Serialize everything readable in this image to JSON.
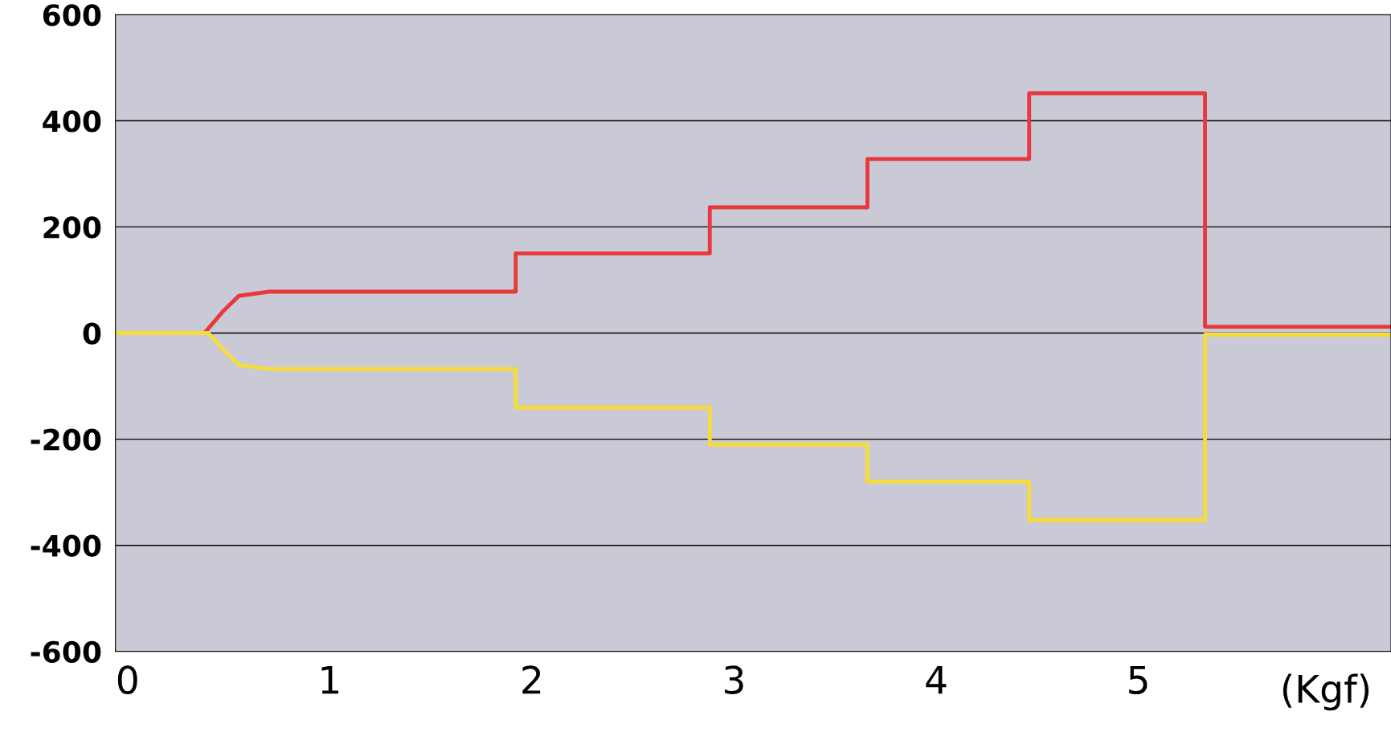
{
  "chart_data": {
    "type": "line",
    "xlabel": "(Kgf)",
    "xlim": [
      -0.06,
      6.25
    ],
    "xticks": [
      0,
      1,
      2,
      3,
      4,
      5
    ],
    "ylim": [
      -600,
      600
    ],
    "yticks": [
      -600,
      -400,
      -200,
      0,
      200,
      400,
      600
    ],
    "grid": "y",
    "marker": "none",
    "line_style": "solid",
    "series": [
      {
        "color": "#e8383d",
        "x": [
          -0.06,
          0.38,
          0.47,
          0.55,
          0.7,
          1.92,
          1.92,
          2.88,
          2.88,
          3.66,
          3.66,
          4.46,
          4.46,
          5.33,
          5.33,
          6.25
        ],
        "values": [
          0,
          0,
          40,
          70,
          78,
          78,
          150,
          150,
          237,
          237,
          328,
          328,
          452,
          452,
          12,
          12
        ]
      },
      {
        "color": "#f5dc3a",
        "x": [
          -0.06,
          0.4,
          0.47,
          0.55,
          0.7,
          1.92,
          1.92,
          2.88,
          2.88,
          3.66,
          3.66,
          4.46,
          4.46,
          5.33,
          5.33,
          6.25
        ],
        "values": [
          0,
          0,
          -30,
          -60,
          -68,
          -68,
          -140,
          -140,
          -210,
          -210,
          -280,
          -280,
          -352,
          -352,
          -3,
          -3
        ]
      }
    ]
  }
}
